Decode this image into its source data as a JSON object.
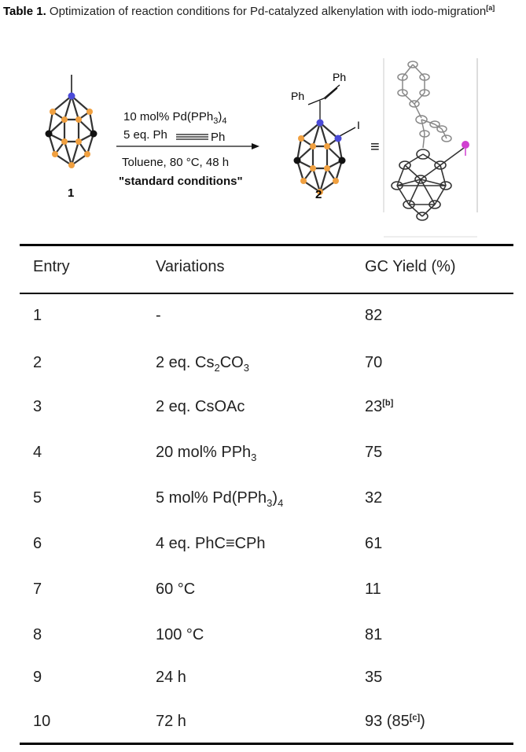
{
  "caption": {
    "label": "Table 1.",
    "text": " Optimization of reaction conditions for Pd-catalyzed alkenylation with iodo-migration",
    "note": "[a]"
  },
  "scheme": {
    "reagent1": "10 mol% Pd(PPh",
    "reagent1_sub": "3",
    "reagent1_close": ")",
    "reagent1_sub2": "4",
    "reagent2_pre": "5 eq. Ph",
    "reagent2_post": "Ph",
    "condition": "Toluene, 80 °C, 48 h",
    "standard": "\"standard conditions\"",
    "compound1": "1",
    "compound2": "2",
    "ph_top": "Ph",
    "ph_left": "Ph",
    "iodo": "I",
    "equiv": "≡"
  },
  "table": {
    "headers": [
      "Entry",
      "Variations",
      "GC Yield (%)"
    ],
    "rows": [
      {
        "entry": "1",
        "var": "-",
        "var_sub": "",
        "var_tail": "",
        "var_sub2": "",
        "yield": "82",
        "yield_note": "",
        "yield_tail": ""
      },
      {
        "entry": "2",
        "var": "2 eq. Cs",
        "var_sub": "2",
        "var_tail": "CO",
        "var_sub2": "3",
        "yield": "70",
        "yield_note": "",
        "yield_tail": ""
      },
      {
        "entry": "3",
        "var": "2 eq. CsOAc",
        "var_sub": "",
        "var_tail": "",
        "var_sub2": "",
        "yield": "23",
        "yield_note": "[b]",
        "yield_tail": ""
      },
      {
        "entry": "4",
        "var": "20 mol% PPh",
        "var_sub": "3",
        "var_tail": "",
        "var_sub2": "",
        "yield": "75",
        "yield_note": "",
        "yield_tail": ""
      },
      {
        "entry": "5",
        "var": "5 mol% Pd(PPh",
        "var_sub": "3",
        "var_tail": ")",
        "var_sub2": "4",
        "yield": "32",
        "yield_note": "",
        "yield_tail": ""
      },
      {
        "entry": "6",
        "var": "4 eq. PhC≡CPh",
        "var_sub": "",
        "var_tail": "",
        "var_sub2": "",
        "yield": "61",
        "yield_note": "",
        "yield_tail": ""
      },
      {
        "entry": "7",
        "var": "60 °C",
        "var_sub": "",
        "var_tail": "",
        "var_sub2": "",
        "yield": "11",
        "yield_note": "",
        "yield_tail": ""
      },
      {
        "entry": "8",
        "var": "100 °C",
        "var_sub": "",
        "var_tail": "",
        "var_sub2": "",
        "yield": "81",
        "yield_note": "",
        "yield_tail": ""
      },
      {
        "entry": "9",
        "var": "24 h",
        "var_sub": "",
        "var_tail": "",
        "var_sub2": "",
        "yield": "35",
        "yield_note": "",
        "yield_tail": ""
      },
      {
        "entry": "10",
        "var": "72 h",
        "var_sub": "",
        "var_tail": "",
        "var_sub2": "",
        "yield": "93 (85",
        "yield_note": "[c]",
        "yield_tail": ")"
      }
    ]
  },
  "colors": {
    "boron": "#f0a040",
    "carbon": "#111111",
    "nitrogen_highlight": "#4a4ad8",
    "iodine": "#d040d0"
  }
}
